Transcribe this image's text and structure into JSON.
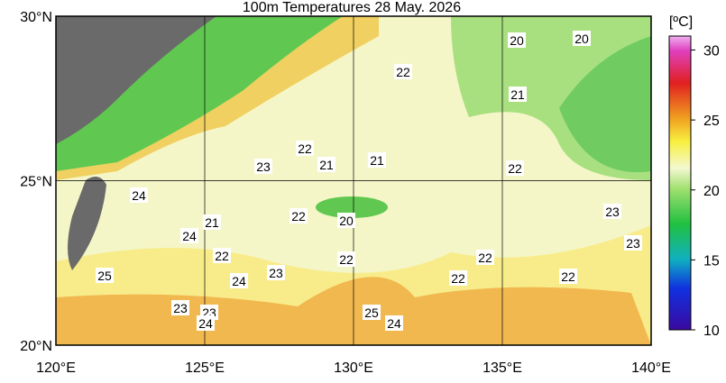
{
  "title": "100m Temperatures  28 May. 2026",
  "map": {
    "lonlim": [
      120,
      140
    ],
    "latlim": [
      20,
      30
    ],
    "lonticks": [
      {
        "value": 120,
        "label": "120°E"
      },
      {
        "value": 125,
        "label": "125°E"
      },
      {
        "value": 130,
        "label": "130°E"
      },
      {
        "value": 135,
        "label": "135°E"
      },
      {
        "value": 140,
        "label": "140°E"
      }
    ],
    "latticks": [
      {
        "value": 20,
        "label": "20°N"
      },
      {
        "value": 25,
        "label": "25°N"
      },
      {
        "value": 30,
        "label": "30°N"
      }
    ],
    "contour_labels": [
      "20",
      "20",
      "22",
      "21",
      "22",
      "21",
      "21",
      "23",
      "22",
      "24",
      "21",
      "22",
      "20",
      "24",
      "23",
      "22",
      "22",
      "22",
      "23",
      "25",
      "23",
      "24",
      "22",
      "22",
      "23",
      "23",
      "24",
      "25",
      "24"
    ]
  },
  "colorbar": {
    "unit": "[ºC]",
    "lim": [
      10,
      31
    ],
    "ticks": [
      10,
      15,
      20,
      25,
      30
    ]
  }
}
